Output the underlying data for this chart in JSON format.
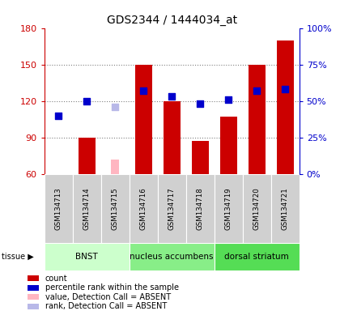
{
  "title": "GDS2344 / 1444034_at",
  "samples": [
    "GSM134713",
    "GSM134714",
    "GSM134715",
    "GSM134716",
    "GSM134717",
    "GSM134718",
    "GSM134719",
    "GSM134720",
    "GSM134721"
  ],
  "count_values": [
    60,
    90,
    null,
    150,
    120,
    87,
    107,
    150,
    170
  ],
  "count_absent": [
    null,
    null,
    72,
    null,
    null,
    null,
    null,
    null,
    null
  ],
  "rank_values": [
    40,
    50,
    null,
    57,
    53,
    48,
    51,
    57,
    58
  ],
  "rank_absent": [
    null,
    null,
    46,
    null,
    null,
    null,
    null,
    null,
    null
  ],
  "ylim_left": [
    60,
    180
  ],
  "ylim_right": [
    0,
    100
  ],
  "yticks_left": [
    60,
    90,
    120,
    150,
    180
  ],
  "yticks_right": [
    0,
    25,
    50,
    75,
    100
  ],
  "ytick_labels_left": [
    "60",
    "90",
    "120",
    "150",
    "180"
  ],
  "ytick_labels_right": [
    "0%",
    "25%",
    "50%",
    "75%",
    "100%"
  ],
  "tissue_groups": [
    {
      "label": "BNST",
      "start": 0,
      "end": 3
    },
    {
      "label": "nucleus accumbens",
      "start": 3,
      "end": 6
    },
    {
      "label": "dorsal striatum",
      "start": 6,
      "end": 9
    }
  ],
  "bar_color": "#cc0000",
  "bar_absent_color": "#ffb6c1",
  "rank_color": "#0000cc",
  "rank_absent_color": "#b8b8e8",
  "tissue_color_light": "#ccffcc",
  "tissue_color_mid": "#88ee88",
  "tissue_color_dark": "#55dd55",
  "sample_box_color": "#d0d0d0",
  "legend_items": [
    {
      "color": "#cc0000",
      "label": "count"
    },
    {
      "color": "#0000cc",
      "label": "percentile rank within the sample"
    },
    {
      "color": "#ffb6c1",
      "label": "value, Detection Call = ABSENT"
    },
    {
      "color": "#b8b8e8",
      "label": "rank, Detection Call = ABSENT"
    }
  ],
  "bar_width": 0.6,
  "rank_marker_size": 35,
  "left_color": "#cc0000",
  "right_color": "#0000cc",
  "figsize": [
    4.2,
    3.84
  ],
  "dpi": 100
}
